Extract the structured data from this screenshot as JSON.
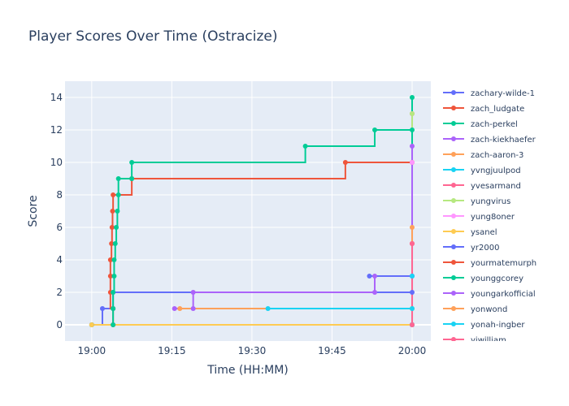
{
  "chart_data": {
    "type": "line",
    "line_shape": "step",
    "title": "Player Scores Over Time (Ostracize)",
    "xlabel": "Time (HH:MM)",
    "ylabel": "Score",
    "xlim": [
      "18:55",
      "20:03.5"
    ],
    "ylim": [
      -1,
      15
    ],
    "x_ticks": [
      "19:00",
      "19:15",
      "19:30",
      "19:45",
      "20:00"
    ],
    "y_ticks": [
      0,
      2,
      4,
      6,
      8,
      10,
      12,
      14
    ],
    "grid": true,
    "legend_position": "right",
    "series": [
      {
        "name": "zachary-wilde-1",
        "color": "#636efa",
        "points": [
          [
            "19:00",
            "0"
          ],
          [
            "19:02",
            "1"
          ],
          [
            "19:04",
            "1"
          ],
          [
            "19:04",
            "2"
          ],
          [
            "20:00",
            "2"
          ]
        ]
      },
      {
        "name": "zach_ludgate",
        "color": "#EF553B",
        "points": [
          [
            "19:00",
            "0"
          ],
          [
            "19:04",
            "0"
          ],
          [
            "19:04",
            "1"
          ],
          [
            "19:03.5",
            "2"
          ],
          [
            "19:03.5",
            "3"
          ],
          [
            "19:03.5",
            "4"
          ],
          [
            "19:03.7",
            "5"
          ],
          [
            "19:03.8",
            "6"
          ],
          [
            "19:03.9",
            "7"
          ],
          [
            "19:04",
            "8"
          ],
          [
            "19:07.5",
            "9"
          ],
          [
            "19:47.5",
            "10"
          ],
          [
            "20:00",
            "10"
          ]
        ]
      },
      {
        "name": "zach-perkel",
        "color": "#00cc96",
        "points": [
          [
            "19:00",
            "0"
          ],
          [
            "19:04",
            "0"
          ],
          [
            "19:04",
            "1"
          ],
          [
            "19:04",
            "2"
          ],
          [
            "19:04.2",
            "3"
          ],
          [
            "19:04.2",
            "4"
          ],
          [
            "19:04.4",
            "5"
          ],
          [
            "19:04.6",
            "6"
          ],
          [
            "19:04.8",
            "7"
          ],
          [
            "19:05",
            "8"
          ],
          [
            "19:05",
            "9"
          ],
          [
            "19:07.5",
            "9"
          ],
          [
            "19:07.5",
            "10"
          ],
          [
            "19:40",
            "11"
          ],
          [
            "19:53",
            "12"
          ],
          [
            "20:00",
            "14"
          ]
        ]
      },
      {
        "name": "zach-kiekhaefer",
        "color": "#ab63fa",
        "points": [
          [
            "19:15.5",
            "1"
          ],
          [
            "19:19",
            "1"
          ],
          [
            "19:19",
            "2"
          ],
          [
            "19:53",
            "2"
          ],
          [
            "19:53",
            "3"
          ],
          [
            "20:00",
            "3"
          ]
        ]
      },
      {
        "name": "zach-aaron-3",
        "color": "#FFA15A",
        "points": [
          [
            "19:16.5",
            "1"
          ],
          [
            "20:00",
            "1"
          ]
        ]
      },
      {
        "name": "yvngjuulpod",
        "color": "#19d3f3",
        "points": [
          [
            "19:33",
            "1"
          ],
          [
            "20:00",
            "1"
          ]
        ]
      },
      {
        "name": "yvesarmand",
        "color": "#FF6692",
        "points": [
          [
            "20:00",
            "0"
          ],
          [
            "20:00",
            "13"
          ]
        ]
      },
      {
        "name": "yungvirus",
        "color": "#B6E880",
        "points": [
          [
            "20:00",
            "0"
          ],
          [
            "20:00",
            "13"
          ]
        ]
      },
      {
        "name": "yung8oner",
        "color": "#FF97FF",
        "points": [
          [
            "20:00",
            "0"
          ],
          [
            "20:00",
            "10"
          ]
        ]
      },
      {
        "name": "ysanel",
        "color": "#FECB52",
        "points": [
          [
            "19:00",
            "0"
          ],
          [
            "20:00",
            "0"
          ]
        ]
      },
      {
        "name": "yr2000",
        "color": "#636efa",
        "points": [
          [
            "19:52",
            "3"
          ],
          [
            "20:00",
            "3"
          ]
        ]
      },
      {
        "name": "yourmatemurph",
        "color": "#EF553B",
        "points": [
          [
            "20:00",
            "0"
          ],
          [
            "20:00",
            "5"
          ]
        ]
      },
      {
        "name": "younggcorey",
        "color": "#00cc96",
        "points": [
          [
            "20:00",
            "0"
          ],
          [
            "20:00",
            "12"
          ]
        ]
      },
      {
        "name": "youngarkofficial",
        "color": "#ab63fa",
        "points": [
          [
            "20:00",
            "0"
          ],
          [
            "20:00",
            "11"
          ]
        ]
      },
      {
        "name": "yonwond",
        "color": "#FFA15A",
        "points": [
          [
            "20:00",
            "0"
          ],
          [
            "20:00",
            "6"
          ]
        ]
      },
      {
        "name": "yonah-ingber",
        "color": "#19d3f3",
        "points": [
          [
            "20:00",
            "0"
          ],
          [
            "20:00",
            "3"
          ]
        ]
      },
      {
        "name": "yiwilliam",
        "color": "#FF6692",
        "points": [
          [
            "20:00",
            "0"
          ],
          [
            "20:00",
            "5"
          ]
        ]
      }
    ]
  }
}
